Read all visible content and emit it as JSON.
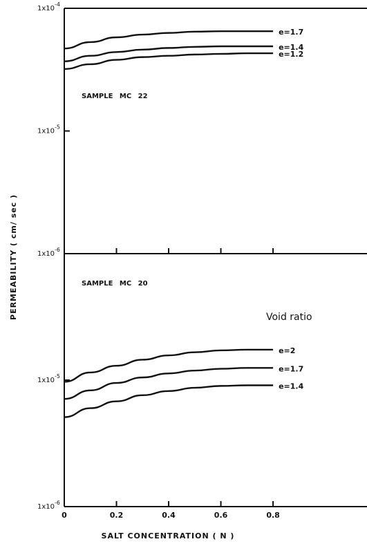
{
  "chart_data": [
    {
      "type": "line",
      "annotation": "SAMPLE  MC 22",
      "log_y": true,
      "x": [
        0,
        0.1,
        0.2,
        0.3,
        0.4,
        0.5,
        0.6,
        0.7,
        0.8
      ],
      "xlim": [
        0,
        1.16
      ],
      "xticks": [
        0,
        0.2,
        0.4,
        0.6,
        0.8
      ],
      "ylim": [
        1e-06,
        0.0001
      ],
      "yticks": [
        {
          "value": 0.0001,
          "label": "1x10",
          "sup": "-4"
        },
        {
          "value": 1e-05,
          "label": "1x10",
          "sup": "-5"
        },
        {
          "value": 1e-06,
          "label": "1x10",
          "sup": "-6"
        }
      ],
      "ylabel": "PERMEABILITY ( cm/ sec )",
      "series": [
        {
          "name": "e=1.7",
          "color": "#111111",
          "values": [
            4.7e-05,
            5.3e-05,
            5.8e-05,
            6.1e-05,
            6.3e-05,
            6.45e-05,
            6.5e-05,
            6.5e-05,
            6.5e-05
          ]
        },
        {
          "name": "e=1.4",
          "color": "#111111",
          "values": [
            3.7e-05,
            4.1e-05,
            4.4e-05,
            4.6e-05,
            4.75e-05,
            4.85e-05,
            4.9e-05,
            4.9e-05,
            4.9e-05
          ]
        },
        {
          "name": "e=1.2",
          "color": "#111111",
          "values": [
            3.2e-05,
            3.5e-05,
            3.8e-05,
            4e-05,
            4.1e-05,
            4.2e-05,
            4.25e-05,
            4.3e-05,
            4.3e-05
          ]
        }
      ]
    },
    {
      "type": "line",
      "annotation": "SAMPLE  MC 20",
      "legend_title": "Void ratio",
      "log_y": true,
      "x": [
        0,
        0.1,
        0.2,
        0.3,
        0.4,
        0.5,
        0.6,
        0.7,
        0.8
      ],
      "xlim": [
        0,
        1.16
      ],
      "xticks": [
        0,
        0.2,
        0.4,
        0.6,
        0.8
      ],
      "xlabel": "SALT CONCENTRATION ( N )",
      "ylim": [
        1e-06,
        0.0001
      ],
      "yticks": [
        {
          "value": 1e-05,
          "label": "1x10",
          "sup": "-5"
        },
        {
          "value": 1e-06,
          "label": "1x10",
          "sup": "-6"
        }
      ],
      "series": [
        {
          "name": "e=2",
          "color": "#111111",
          "values": [
            9.7e-06,
            1.15e-05,
            1.3e-05,
            1.45e-05,
            1.57e-05,
            1.66e-05,
            1.72e-05,
            1.74e-05,
            1.74e-05
          ]
        },
        {
          "name": "e=1.7",
          "color": "#111111",
          "values": [
            7.1e-06,
            8.3e-06,
            9.5e-06,
            1.05e-05,
            1.13e-05,
            1.19e-05,
            1.23e-05,
            1.25e-05,
            1.25e-05
          ]
        },
        {
          "name": "e=1.4",
          "color": "#111111",
          "values": [
            5.1e-06,
            6e-06,
            6.8e-06,
            7.6e-06,
            8.2e-06,
            8.7e-06,
            9e-06,
            9.1e-06,
            9.1e-06
          ]
        }
      ]
    }
  ]
}
